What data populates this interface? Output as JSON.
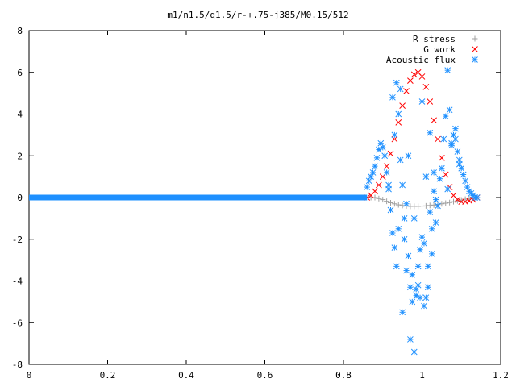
{
  "chart_data": {
    "type": "scatter",
    "title": "m1/n1.5/q1.5/r-+.75-j385/M0.15/512",
    "xlabel": "",
    "ylabel": "",
    "xlim": [
      0,
      1.2
    ],
    "ylim": [
      -8,
      8
    ],
    "xticks": [
      "0",
      "0.2",
      "0.4",
      "0.6",
      "0.8",
      "1",
      "1.2"
    ],
    "yticks": [
      "-8",
      "-6",
      "-4",
      "-2",
      "0",
      "2",
      "4",
      "6",
      "8"
    ],
    "legend_position": "top-right",
    "grid": false,
    "series": [
      {
        "name": "R stress",
        "marker": "+",
        "color": "#a0a0a0",
        "x": [
          0.87,
          0.88,
          0.89,
          0.9,
          0.91,
          0.92,
          0.93,
          0.94,
          0.95,
          0.96,
          0.97,
          0.98,
          0.99,
          1.0,
          1.01,
          1.02,
          1.03,
          1.04,
          1.05,
          1.06,
          1.07,
          1.08,
          1.09,
          1.1,
          1.11,
          1.12,
          1.13,
          1.14
        ],
        "y": [
          0.0,
          0.0,
          -0.05,
          -0.1,
          -0.18,
          -0.25,
          -0.3,
          -0.35,
          -0.38,
          -0.4,
          -0.42,
          -0.42,
          -0.42,
          -0.41,
          -0.4,
          -0.38,
          -0.36,
          -0.33,
          -0.3,
          -0.27,
          -0.24,
          -0.2,
          -0.16,
          -0.12,
          -0.08,
          -0.05,
          -0.02,
          0.0
        ]
      },
      {
        "name": "G work",
        "marker": "x",
        "color": "#ff0000",
        "x": [
          0.86,
          0.87,
          0.88,
          0.89,
          0.9,
          0.91,
          0.92,
          0.93,
          0.94,
          0.95,
          0.96,
          0.97,
          0.98,
          0.99,
          1.0,
          1.01,
          1.02,
          1.03,
          1.04,
          1.05,
          1.06,
          1.07,
          1.08,
          1.09,
          1.1,
          1.11,
          1.12,
          1.13,
          1.14
        ],
        "y": [
          0.0,
          0.1,
          0.3,
          0.6,
          1.0,
          1.5,
          2.1,
          2.8,
          3.6,
          4.4,
          5.1,
          5.6,
          5.9,
          6.0,
          5.8,
          5.3,
          4.6,
          3.7,
          2.8,
          1.9,
          1.1,
          0.5,
          0.1,
          -0.1,
          -0.2,
          -0.2,
          -0.15,
          -0.1,
          0.0
        ]
      },
      {
        "name": "Acoustic flux",
        "marker": "*",
        "color": "#1e90ff",
        "baseline": {
          "x_start": 0.0,
          "x_end": 0.86,
          "y": 0.0
        },
        "x": [
          0.86,
          0.865,
          0.87,
          0.875,
          0.88,
          0.885,
          0.89,
          0.895,
          0.9,
          0.905,
          0.91,
          0.915,
          0.92,
          0.925,
          0.93,
          0.93,
          0.935,
          0.94,
          0.94,
          0.945,
          0.95,
          0.95,
          0.955,
          0.96,
          0.96,
          0.965,
          0.97,
          0.97,
          0.975,
          0.98,
          0.98,
          0.985,
          0.99,
          0.99,
          0.995,
          1.0,
          1.0,
          1.005,
          1.01,
          1.01,
          1.015,
          1.02,
          1.02,
          1.025,
          1.03,
          1.03,
          1.035,
          1.04,
          1.045,
          1.05,
          1.055,
          1.06,
          1.065,
          1.07,
          1.075,
          1.08,
          1.085,
          1.09,
          1.095,
          1.1,
          1.105,
          1.11,
          1.115,
          1.12,
          1.125,
          1.13,
          1.135,
          1.14,
          0.915,
          0.925,
          0.935,
          0.945,
          0.955,
          0.965,
          0.975,
          0.985,
          0.995,
          1.005,
          1.015,
          1.025,
          1.035,
          1.065,
          1.075,
          1.085,
          1.095
        ],
        "y": [
          0.5,
          0.8,
          1.0,
          1.2,
          1.5,
          1.9,
          2.3,
          2.6,
          2.4,
          2.0,
          1.2,
          0.4,
          -0.6,
          -1.7,
          -2.4,
          3.0,
          -3.3,
          4.0,
          -1.5,
          5.2,
          -5.5,
          0.6,
          -2.0,
          -0.3,
          -3.5,
          2.0,
          -4.3,
          -6.8,
          -5.0,
          -7.4,
          -1.0,
          -4.7,
          -4.2,
          -3.3,
          -2.5,
          -1.9,
          4.6,
          -2.2,
          -4.8,
          1.0,
          -3.3,
          -0.7,
          3.1,
          -1.5,
          0.3,
          1.2,
          -0.1,
          -0.4,
          0.9,
          1.4,
          2.8,
          3.9,
          6.1,
          4.2,
          2.5,
          3.0,
          2.8,
          2.2,
          1.8,
          1.4,
          1.1,
          0.8,
          0.5,
          0.3,
          0.2,
          0.1,
          0.0,
          0.0,
          0.6,
          4.8,
          5.5,
          1.8,
          -1.0,
          -2.8,
          -3.7,
          -4.4,
          -4.8,
          -5.2,
          -4.3,
          -2.7,
          -1.2,
          0.4,
          2.6,
          3.3,
          1.6
        ]
      }
    ]
  }
}
